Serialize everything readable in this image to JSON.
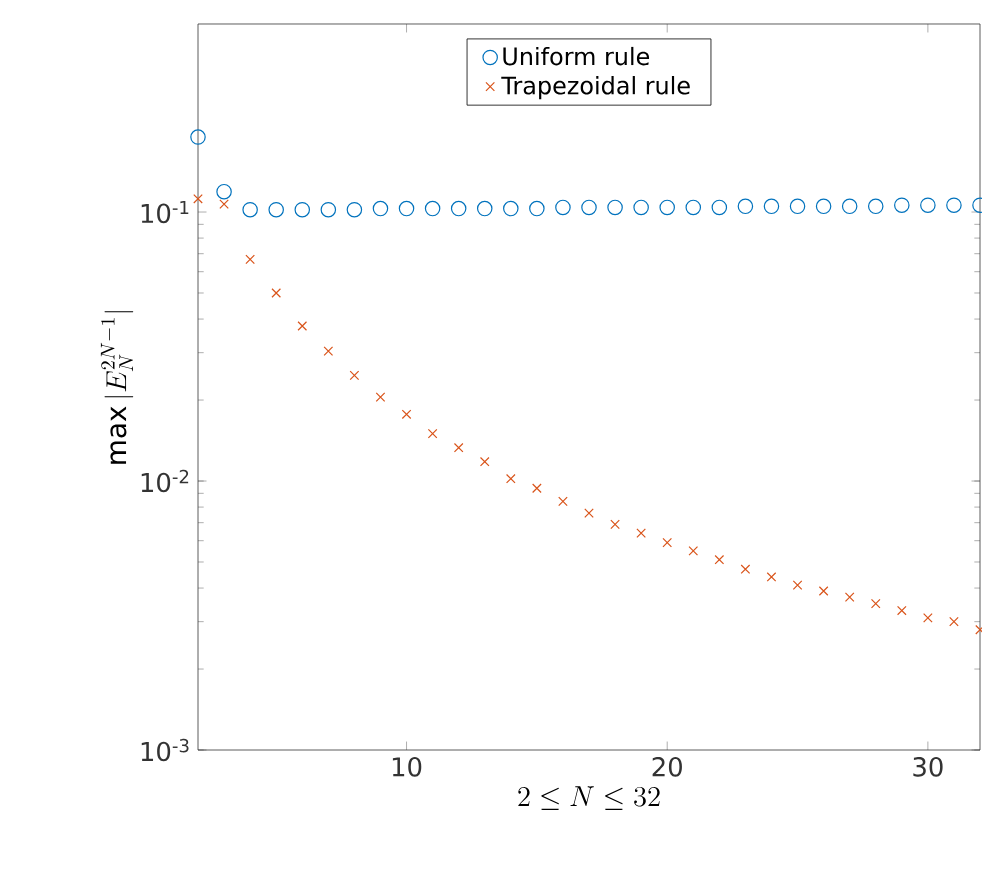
{
  "chart_data": {
    "type": "scatter",
    "xlabel": "2 \\le N \\le 32",
    "ylabel": "\\max|E_N^{2N-1}|",
    "x": [
      2,
      3,
      4,
      5,
      6,
      7,
      8,
      9,
      10,
      11,
      12,
      13,
      14,
      15,
      16,
      17,
      18,
      19,
      20,
      21,
      22,
      23,
      24,
      25,
      26,
      27,
      28,
      29,
      30,
      31,
      32
    ],
    "series": [
      {
        "name": "Uniform rule",
        "color": "#0072bd",
        "marker": "circle",
        "values": [
          0.19,
          0.119,
          0.102,
          0.102,
          0.102,
          0.102,
          0.102,
          0.103,
          0.103,
          0.103,
          0.103,
          0.103,
          0.103,
          0.103,
          0.104,
          0.104,
          0.104,
          0.104,
          0.104,
          0.104,
          0.104,
          0.105,
          0.105,
          0.105,
          0.105,
          0.105,
          0.105,
          0.106,
          0.106,
          0.106,
          0.106
        ]
      },
      {
        "name": "Trapezoidal rule",
        "color": "#d95319",
        "marker": "cross",
        "values": [
          0.112,
          0.107,
          0.0667,
          0.05,
          0.0377,
          0.0304,
          0.0247,
          0.0205,
          0.0177,
          0.015,
          0.0133,
          0.0118,
          0.0102,
          0.0094,
          0.0084,
          0.0076,
          0.0069,
          0.0064,
          0.0059,
          0.0055,
          0.0051,
          0.0047,
          0.0044,
          0.0041,
          0.0039,
          0.0037,
          0.0035,
          0.0033,
          0.0031,
          0.003,
          0.0028
        ]
      }
    ],
    "log": "y",
    "xlim": [
      2,
      32
    ],
    "ylim": [
      0.001,
      0.5
    ],
    "xticks": [
      10,
      20,
      30
    ],
    "yticks": [
      {
        "value": 0.001,
        "label": "10$^{-3}$"
      },
      {
        "value": 0.01,
        "label": "10$^{-2}$"
      },
      {
        "value": 0.1,
        "label": "10$^{-1}$"
      }
    ],
    "legend": "top",
    "grid": false
  }
}
